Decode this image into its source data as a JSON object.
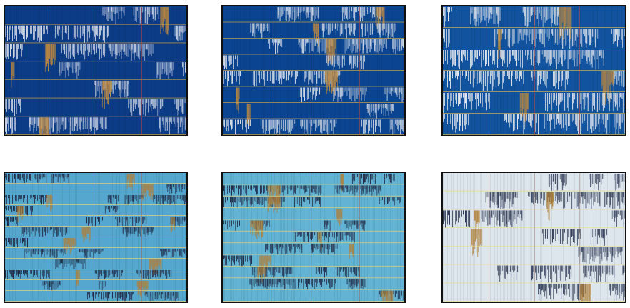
{
  "panels": [
    {
      "id": "top-left",
      "bg": "#0d3c87",
      "band": "#d6dde9",
      "accent": "#c08a3e",
      "grid_line": "#c9a24a",
      "divider": "#c0453a",
      "rows": 7,
      "density": 0.55,
      "seed": 11
    },
    {
      "id": "top-center",
      "bg": "#0b4592",
      "band": "#d9e0ea",
      "accent": "#c08a3e",
      "grid_line": "#c9a24a",
      "divider": "#c0453a",
      "rows": 8,
      "density": 0.55,
      "seed": 23
    },
    {
      "id": "top-right",
      "bg": "#11539e",
      "band": "#e4e8ee",
      "accent": "#c08a3e",
      "grid_line": "#d1b15a",
      "divider": "#c0453a",
      "rows": 6,
      "density": 0.7,
      "seed": 37
    },
    {
      "id": "bottom-left",
      "bg": "#56a7cf",
      "band": "#1f2a45",
      "accent": "#b0803a",
      "grid_line": "#e4d37a",
      "divider": "#9a6a5a",
      "rows": 12,
      "density": 0.45,
      "seed": 41
    },
    {
      "id": "bottom-center",
      "bg": "#62b3d4",
      "band": "#1f2a45",
      "accent": "#b0803a",
      "grid_line": "#e4d37a",
      "divider": "#9a6a5a",
      "rows": 11,
      "density": 0.45,
      "seed": 53
    },
    {
      "id": "bottom-right",
      "bg": "#dce6ec",
      "band": "#2b3552",
      "accent": "#b0803a",
      "grid_line": "#e9dc8e",
      "divider": "#a98a7a",
      "rows": 7,
      "density": 0.4,
      "seed": 67
    }
  ]
}
